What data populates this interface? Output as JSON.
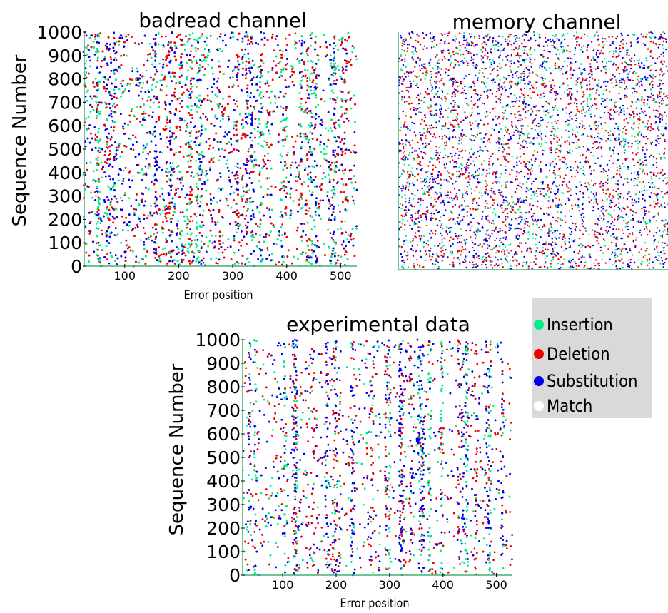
{
  "legend": {
    "items": [
      {
        "label": "Insertion",
        "color": "#00ee88",
        "icon": "green-dot"
      },
      {
        "label": "Deletion",
        "color": "#ee0000",
        "icon": "red-dot"
      },
      {
        "label": "Substitution",
        "color": "#0000ee",
        "icon": "blue-dot"
      },
      {
        "label": "Match",
        "color": "#ffffff",
        "icon": "white-dot"
      }
    ]
  },
  "chart_data": [
    {
      "type": "scatter",
      "title": "badread channel",
      "xlabel": "Error position",
      "ylabel": "Sequence Number",
      "xlim": [
        25,
        530
      ],
      "ylim": [
        0,
        1000
      ],
      "xticks": [
        100,
        200,
        300,
        400,
        500
      ],
      "yticks": [
        0,
        100,
        200,
        300,
        400,
        500,
        600,
        700,
        800,
        900,
        1000
      ],
      "series": [
        {
          "name": "Insertion",
          "color": "#00ee88"
        },
        {
          "name": "Deletion",
          "color": "#ee0000"
        },
        {
          "name": "Substitution",
          "color": "#0000ee"
        }
      ],
      "point_density": "very high"
    },
    {
      "type": "scatter",
      "title": "memory channel",
      "xlabel": "",
      "ylabel": "",
      "ylim": [
        0,
        1000
      ],
      "xticks": [],
      "yticks": [],
      "series": [
        {
          "name": "Insertion",
          "color": "#00ee88"
        },
        {
          "name": "Deletion",
          "color": "#ee0000"
        },
        {
          "name": "Substitution",
          "color": "#0000ee"
        }
      ],
      "point_density": "medium"
    },
    {
      "type": "scatter",
      "title": "experimental data",
      "xlabel": "Error position",
      "ylabel": "Sequence Number",
      "xlim": [
        25,
        530
      ],
      "ylim": [
        0,
        1000
      ],
      "xticks": [
        100,
        200,
        300,
        400,
        500
      ],
      "yticks": [
        0,
        100,
        200,
        300,
        400,
        500,
        600,
        700,
        800,
        900,
        1000
      ],
      "series": [
        {
          "name": "Insertion",
          "color": "#00ee88"
        },
        {
          "name": "Deletion",
          "color": "#ee0000"
        },
        {
          "name": "Substitution",
          "color": "#0000ee"
        }
      ],
      "point_density": "high with vertical streaks"
    }
  ]
}
